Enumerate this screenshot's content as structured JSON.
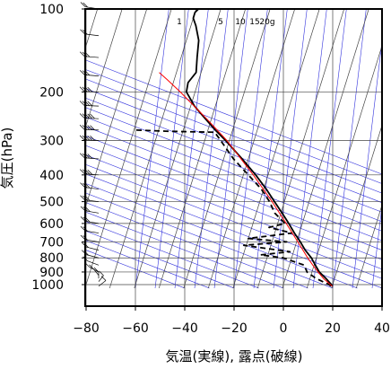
{
  "chart_data": {
    "type": "skew-t",
    "xlabel": "気温(実線), 露点(破線)",
    "ylabel": "気圧(hPa)",
    "x_ticks": [
      -80,
      -60,
      -40,
      -20,
      0,
      20,
      40
    ],
    "x_tick_labels": [
      "−80",
      "−60",
      "−40",
      "−20",
      "0",
      "20",
      "40"
    ],
    "y_ticks": [
      100,
      200,
      300,
      400,
      500,
      600,
      700,
      800,
      900,
      1000
    ],
    "y_tick_labels": [
      "100",
      "200",
      "300",
      "400",
      "500",
      "600",
      "700",
      "800",
      "900",
      "1000"
    ],
    "xlim": [
      -80,
      40
    ],
    "ylim": [
      1030,
      100
    ],
    "y_scale": "log",
    "mixing_ratio_labels": [
      "1",
      "5",
      "10",
      "15",
      "20g"
    ],
    "series": [
      {
        "role": "temperature",
        "line": "solid",
        "color": "#000000",
        "points": [
          [
            1013,
            20.0
          ],
          [
            1000,
            19.5
          ],
          [
            950,
            16.5
          ],
          [
            900,
            13.0
          ],
          [
            850,
            10.5
          ],
          [
            800,
            8.0
          ],
          [
            750,
            4.5
          ],
          [
            700,
            1.5
          ],
          [
            650,
            -2.0
          ],
          [
            600,
            -5.5
          ],
          [
            550,
            -9.5
          ],
          [
            500,
            -14.0
          ],
          [
            450,
            -19.0
          ],
          [
            400,
            -25.0
          ],
          [
            350,
            -32.5
          ],
          [
            300,
            -41.5
          ],
          [
            275,
            -47.0
          ],
          [
            250,
            -52.5
          ],
          [
            225,
            -58.5
          ],
          [
            200,
            -63.5
          ],
          [
            185,
            -64.0
          ],
          [
            170,
            -62.0
          ],
          [
            150,
            -63.5
          ],
          [
            130,
            -65.0
          ],
          [
            115,
            -68.0
          ],
          [
            108,
            -70.0
          ],
          [
            103,
            -70.0
          ],
          [
            100,
            -69.0
          ]
        ]
      },
      {
        "role": "dewpoint",
        "line": "dashed",
        "color": "#000000",
        "points": [
          [
            1013,
            19.5
          ],
          [
            1000,
            18.5
          ],
          [
            950,
            12.5
          ],
          [
            900,
            8.0
          ],
          [
            850,
            6.0
          ],
          [
            800,
            -3.5
          ],
          [
            780,
            -13.0
          ],
          [
            760,
            -1.5
          ],
          [
            720,
            -21.0
          ],
          [
            700,
            -4.0
          ],
          [
            680,
            -20.0
          ],
          [
            650,
            -3.0
          ],
          [
            620,
            -13.0
          ],
          [
            600,
            -7.0
          ],
          [
            550,
            -12.5
          ],
          [
            500,
            -16.0
          ],
          [
            450,
            -21.0
          ],
          [
            400,
            -28.0
          ],
          [
            350,
            -36.0
          ],
          [
            300,
            -43.5
          ],
          [
            280,
            -47.0
          ],
          [
            278,
            -65.0
          ],
          [
            275,
            -79.0
          ]
        ]
      },
      {
        "role": "parcel-path",
        "line": "solid",
        "color": "#ff0000",
        "points": [
          [
            1013,
            20.0
          ],
          [
            950,
            15.5
          ],
          [
            900,
            12.5
          ],
          [
            850,
            9.5
          ],
          [
            800,
            6.5
          ],
          [
            700,
            0.5
          ],
          [
            600,
            -6.5
          ],
          [
            500,
            -15.0
          ],
          [
            400,
            -26.0
          ],
          [
            300,
            -41.0
          ],
          [
            250,
            -52.0
          ],
          [
            200,
            -66.0
          ],
          [
            180,
            -73.0
          ],
          [
            170,
            -77.0
          ]
        ]
      }
    ],
    "wind_barbs": [
      [
        1013,
        150,
        5
      ],
      [
        975,
        160,
        5
      ],
      [
        950,
        180,
        5
      ],
      [
        925,
        200,
        5
      ],
      [
        900,
        220,
        10
      ],
      [
        850,
        230,
        10
      ],
      [
        800,
        240,
        15
      ],
      [
        750,
        240,
        15
      ],
      [
        700,
        250,
        20
      ],
      [
        650,
        250,
        20
      ],
      [
        600,
        250,
        25
      ],
      [
        550,
        250,
        25
      ],
      [
        500,
        255,
        30
      ],
      [
        450,
        255,
        30
      ],
      [
        400,
        260,
        35
      ],
      [
        350,
        260,
        40
      ],
      [
        300,
        265,
        45
      ],
      [
        275,
        265,
        45
      ],
      [
        250,
        265,
        45
      ],
      [
        225,
        265,
        40
      ],
      [
        200,
        265,
        35
      ],
      [
        175,
        260,
        30
      ],
      [
        150,
        260,
        25
      ],
      [
        125,
        255,
        20
      ],
      [
        100,
        250,
        15
      ]
    ],
    "colors": {
      "isotherm_isobar_grid": "#444444",
      "mixing_ratio_lines": "#3333dd",
      "frame": "#000000"
    }
  }
}
